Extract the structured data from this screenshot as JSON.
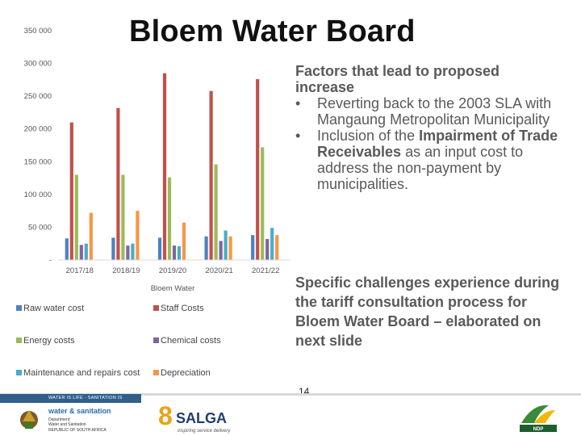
{
  "slide": {
    "title": "Bloem Water Board",
    "factors_heading": "Factors that lead to proposed increase",
    "bullet_symbol": "•",
    "bullets": [
      {
        "text": "Reverting back to the 2003 SLA with Mangaung Metropolitan Municipality"
      },
      {
        "pre": "Inclusion of the ",
        "bold": "Impairment of Trade Receivables",
        "post": " as an input cost to address the non-payment by municipalities."
      }
    ],
    "challenges": "Specific challenges experience during the tariff consultation process for Bloem Water Board – elaborated on next slide",
    "page_number": "14",
    "footer_strip": "WATER IS LIFE - SANITATION IS DIGNITY",
    "dws_logo": {
      "line1": "water & sanitation",
      "line2": "Department:",
      "line3": "Water and Sanitation",
      "line4": "REPUBLIC OF SOUTH AFRICA"
    },
    "salga_logo": {
      "number": "8",
      "name": "SALGA",
      "tagline": "inspiring service delivery"
    },
    "ndp_logo": {
      "name": "NDP"
    }
  },
  "chart_data": {
    "type": "bar",
    "title": "",
    "xlabel": "Bloem Water",
    "ylabel": "",
    "categories": [
      "2017/18",
      "2018/19",
      "2019/20",
      "2020/21",
      "2021/22"
    ],
    "yticks": [
      "-",
      "50 000",
      "100 000",
      "150 000",
      "200 000",
      "250 000",
      "300 000",
      "350 000"
    ],
    "ylim": [
      0,
      350000
    ],
    "grid": false,
    "legend_position": "bottom",
    "series": [
      {
        "name": "Raw water cost",
        "color": "#4f81bd",
        "values": [
          33000,
          34000,
          34000,
          36000,
          38000
        ]
      },
      {
        "name": "Staff Costs",
        "color": "#c0504d",
        "values": [
          210000,
          232000,
          285000,
          258000,
          276000
        ]
      },
      {
        "name": "Energy costs",
        "color": "#9bbb59",
        "values": [
          130000,
          130000,
          126000,
          146000,
          172000
        ]
      },
      {
        "name": "Chemical costs",
        "color": "#8064a2",
        "values": [
          23000,
          22000,
          22000,
          29000,
          32000
        ]
      },
      {
        "name": "Maintenance and repairs cost",
        "color": "#4bacc6",
        "values": [
          25000,
          25000,
          21000,
          45000,
          49000
        ]
      },
      {
        "name": "Depreciation",
        "color": "#f79646",
        "values": [
          72000,
          75000,
          57000,
          36000,
          38000
        ]
      }
    ]
  }
}
